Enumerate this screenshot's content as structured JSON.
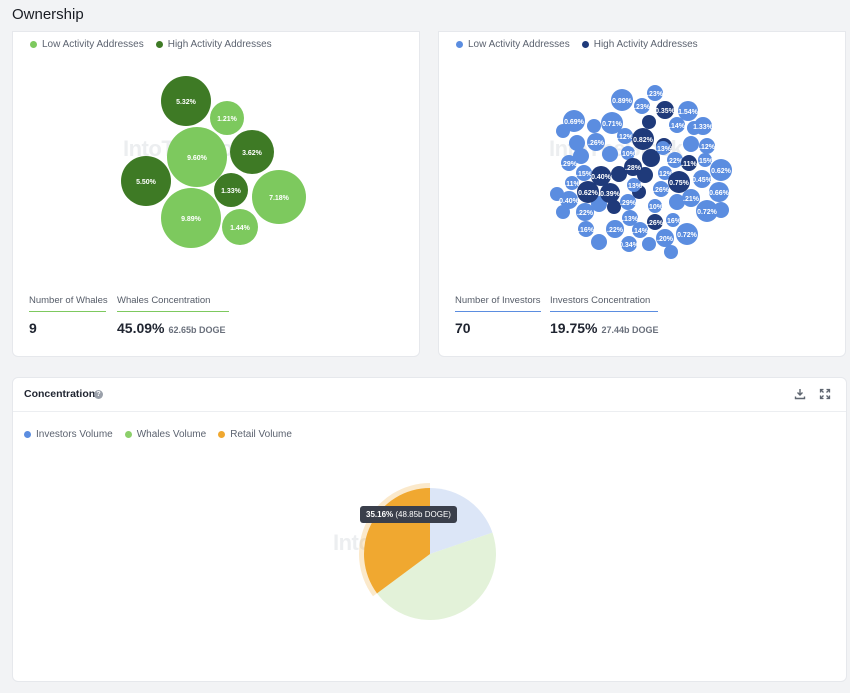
{
  "page": {
    "title": "Ownership"
  },
  "colors": {
    "low_green": "#7dc95e",
    "high_green": "#3e7a25",
    "low_blue": "#5b8de0",
    "high_blue": "#1f3a7a",
    "investors": "#5b8de0",
    "whales": "#8ccf6b",
    "retail": "#f0a830"
  },
  "whales_panel": {
    "legend": [
      {
        "label": "Low Activity Addresses",
        "color": "#7dc95e"
      },
      {
        "label": "High Activity Addresses",
        "color": "#3e7a25"
      }
    ],
    "bubbles": [
      {
        "label": "5.32%",
        "level": "high"
      },
      {
        "label": "1.21%",
        "level": "low"
      },
      {
        "label": "9.60%",
        "level": "low"
      },
      {
        "label": "3.62%",
        "level": "high"
      },
      {
        "label": "5.50%",
        "level": "high"
      },
      {
        "label": "1.33%",
        "level": "high"
      },
      {
        "label": "7.18%",
        "level": "low"
      },
      {
        "label": "9.89%",
        "level": "low"
      },
      {
        "label": "1.44%",
        "level": "low"
      }
    ],
    "count_label": "Number of Whales",
    "count_value": "9",
    "concentration_label": "Whales Concentration",
    "concentration_value": "45.09%",
    "concentration_sub": "62.65b DOGE"
  },
  "investors_panel": {
    "legend": [
      {
        "label": "Low Activity Addresses",
        "color": "#5b8de0"
      },
      {
        "label": "High Activity Addresses",
        "color": "#1f3a7a"
      }
    ],
    "bubbles": [
      {
        "label": ".23%"
      },
      {
        "label": "0.89%"
      },
      {
        "label": ".23%"
      },
      {
        "label": "0.35%"
      },
      {
        "label": "1.54%"
      },
      {
        "label": "0.69%"
      },
      {
        "label": "0.71%"
      },
      {
        "label": ".14%"
      },
      {
        "label": "1.33%"
      },
      {
        "label": ".26%"
      },
      {
        "label": ".12%"
      },
      {
        "label": "0.82%"
      },
      {
        "label": ".13%"
      },
      {
        "label": ".12%"
      },
      {
        "label": ".10%"
      },
      {
        "label": ".13%"
      },
      {
        "label": ".22%"
      },
      {
        "label": ".15%"
      },
      {
        "label": ".29%"
      },
      {
        "label": ".11%"
      },
      {
        "label": ".28%"
      },
      {
        "label": ".11%"
      },
      {
        "label": "0.62%"
      },
      {
        "label": ".15%"
      },
      {
        "label": "0.40%"
      },
      {
        "label": ".12%"
      },
      {
        "label": "0.75%"
      },
      {
        "label": "0.45%"
      },
      {
        "label": ".11%"
      },
      {
        "label": "0.62%"
      },
      {
        "label": "0.39%"
      },
      {
        "label": ".13%"
      },
      {
        "label": ".26%"
      },
      {
        "label": ".21%"
      },
      {
        "label": "0.66%"
      },
      {
        "label": "0.40%"
      },
      {
        "label": ".29%"
      },
      {
        "label": ".10%"
      },
      {
        "label": ".22%"
      },
      {
        "label": ".13%"
      },
      {
        "label": ".26%"
      },
      {
        "label": ".16%"
      },
      {
        "label": "0.72%"
      },
      {
        "label": ".16%"
      },
      {
        "label": ".22%"
      },
      {
        "label": ".14%"
      },
      {
        "label": ".20%"
      },
      {
        "label": "0.72%"
      },
      {
        "label": "0.34%"
      }
    ],
    "count_label": "Number of Investors",
    "count_value": "70",
    "concentration_label": "Investors Concentration",
    "concentration_value": "19.75%",
    "concentration_sub": "27.44b DOGE"
  },
  "concentration_panel": {
    "title": "Concentration",
    "help_icon": "question-icon",
    "download_icon": "download-icon",
    "expand_icon": "expand-icon",
    "legend": [
      {
        "label": "Investors Volume",
        "color": "#5b8de0"
      },
      {
        "label": "Whales Volume",
        "color": "#8ccf6b"
      },
      {
        "label": "Retail Volume",
        "color": "#f0a830"
      }
    ],
    "tooltip_value": "35.16%",
    "tooltip_sub": "(48.85b DOGE)"
  },
  "watermark_text": "IntoTheBlock",
  "chart_data": {
    "type": "pie",
    "categories": [
      "Investors Volume",
      "Whales Volume",
      "Retail Volume"
    ],
    "values": [
      19.75,
      45.09,
      35.16
    ],
    "legend_position": "top-left"
  }
}
